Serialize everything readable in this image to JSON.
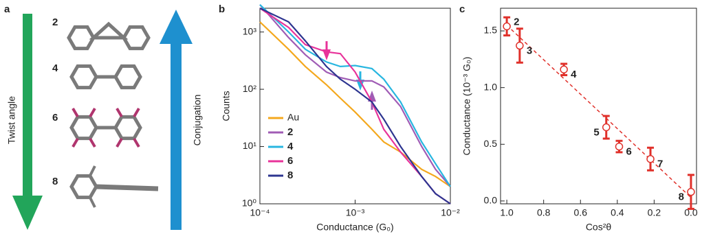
{
  "panel_a": {
    "panel_label": "a",
    "left_arrow_label": "Twist angle",
    "right_arrow_label": "Conjugation",
    "molecules": [
      "2",
      "4",
      "6",
      "8"
    ]
  },
  "chart_data": [
    {
      "type": "line",
      "panel_label": "b",
      "x_label": "Conductance (G₀)",
      "y_label": "Counts",
      "log_x": true,
      "log_y": true,
      "x": [
        0.0001,
        0.0002,
        0.0003,
        0.0005,
        0.0007,
        0.001,
        0.0015,
        0.002,
        0.003,
        0.005,
        0.007,
        0.01
      ],
      "series": [
        {
          "name": "Au",
          "color": "#f4a81d",
          "values": [
            1500,
            500,
            250,
            120,
            70,
            40,
            20,
            12,
            8,
            4,
            3,
            2
          ]
        },
        {
          "name": "2",
          "color": "#a05cb5",
          "values": [
            3000,
            800,
            400,
            200,
            160,
            140,
            140,
            110,
            50,
            10,
            4,
            2
          ]
        },
        {
          "name": "4",
          "color": "#27b6e0",
          "values": [
            3000,
            1000,
            500,
            300,
            250,
            260,
            230,
            150,
            60,
            12,
            5,
            2
          ]
        },
        {
          "name": "6",
          "color": "#e8339a",
          "values": [
            2600,
            1200,
            600,
            450,
            420,
            200,
            60,
            20,
            8,
            3,
            1.5,
            1
          ]
        },
        {
          "name": "8",
          "color": "#2d3590",
          "values": [
            2600,
            1500,
            700,
            250,
            150,
            100,
            60,
            30,
            10,
            3,
            1.5,
            1
          ]
        }
      ],
      "xlim": [
        0.0001,
        0.01
      ],
      "xticks": [
        {
          "value": 0.0001,
          "label": "10⁻⁴"
        },
        {
          "value": 0.001,
          "label": "10⁻³"
        },
        {
          "value": 0.01,
          "label": "10⁻²"
        }
      ],
      "ylim": [
        1,
        2600
      ],
      "yticks": [
        {
          "value": 1,
          "label": "10⁰"
        },
        {
          "value": 10,
          "label": "10¹"
        },
        {
          "value": 100,
          "label": "10²"
        },
        {
          "value": 1000,
          "label": "10³"
        }
      ],
      "legend": "lower-left"
    },
    {
      "type": "scatter",
      "panel_label": "c",
      "x_label": "Cos²θ",
      "y_label": "Conductance (10⁻³ G₀)",
      "color": "#e0302a",
      "x": [
        1.0,
        0.93,
        0.69,
        0.46,
        0.39,
        0.22,
        0.0
      ],
      "values": [
        1.54,
        1.37,
        1.16,
        0.65,
        0.48,
        0.37,
        0.08
      ],
      "errors": [
        0.08,
        0.15,
        0.05,
        0.1,
        0.05,
        0.1,
        0.15
      ],
      "labels": [
        "2",
        "3",
        "4",
        "5",
        "6",
        "7",
        "8"
      ],
      "fit": {
        "x": [
          1.0,
          0.0
        ],
        "values": [
          1.55,
          0.03
        ]
      },
      "xlim": [
        1.034,
        -0.03
      ],
      "xticks": [
        {
          "value": 1.0,
          "label": "1.0"
        },
        0.8,
        0.6,
        0.4,
        0.2,
        {
          "value": 0.0,
          "label": "0.0"
        }
      ],
      "ylim": [
        -0.025,
        1.7
      ],
      "yticks": [
        {
          "value": 0.0,
          "label": "0.0"
        },
        0.5,
        {
          "value": 1.0,
          "label": "1.0"
        },
        1.5
      ]
    }
  ]
}
